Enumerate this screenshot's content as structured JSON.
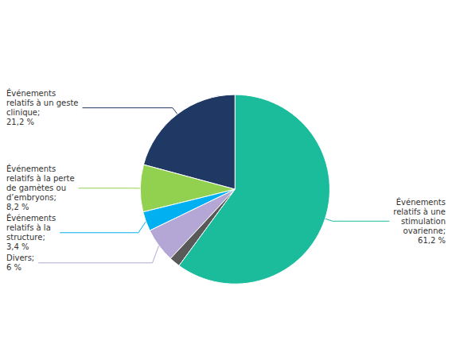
{
  "chart_data": {
    "type": "pie",
    "categories": [
      "Événements\nrelatifs à un geste\nclinique;\n21,2 %",
      "Événements\nrelatifs à la perte\nde gamètes ou\nd’embryons;\n8,2 %",
      "Événements\nrelatifs à la\nstructure;\n3,4 %",
      "Divers;\n6 %",
      null,
      "Événements\nrelatifs à une\nstimulation\novarienne;\n61,2 %"
    ],
    "values": [
      21.2,
      8.2,
      3.4,
      6.0,
      1.9,
      61.2
    ],
    "colors": [
      "#1f3864",
      "#92d050",
      "#00b0f0",
      "#b4a7d6",
      "#595959",
      "#1abc9c"
    ]
  }
}
